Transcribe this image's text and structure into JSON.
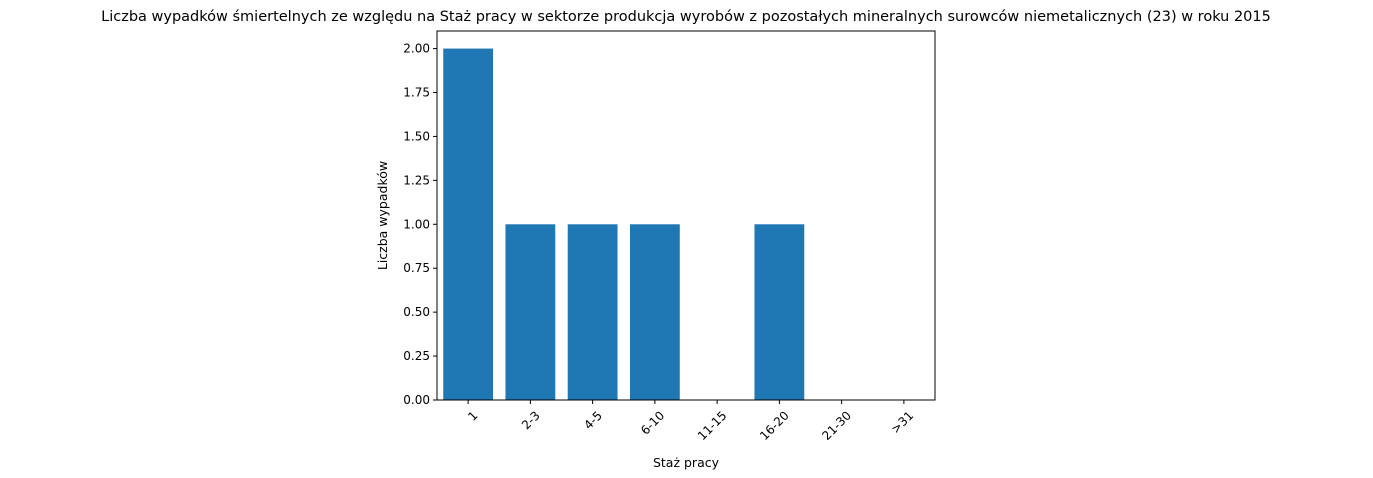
{
  "chart_data": {
    "type": "bar",
    "title": "Liczba wypadków śmiertelnych ze względu na Staż pracy w sektorze produkcja wyrobów z pozostałych mineralnych surowców niemetalicznych (23)  w roku 2015",
    "xlabel": "Staż pracy",
    "ylabel": "Liczba wypadków",
    "categories": [
      "1",
      "2-3",
      "4-5",
      "6-10",
      "11-15",
      "16-20",
      "21-30",
      ">31"
    ],
    "values": [
      2,
      1,
      1,
      1,
      0,
      1,
      0,
      0
    ],
    "ylim": [
      0,
      2.1
    ],
    "yticks": [
      "0.00",
      "0.25",
      "0.50",
      "0.75",
      "1.00",
      "1.25",
      "1.50",
      "1.75",
      "2.00"
    ],
    "bar_color": "#1f77b4",
    "grid": false,
    "legend": false
  }
}
